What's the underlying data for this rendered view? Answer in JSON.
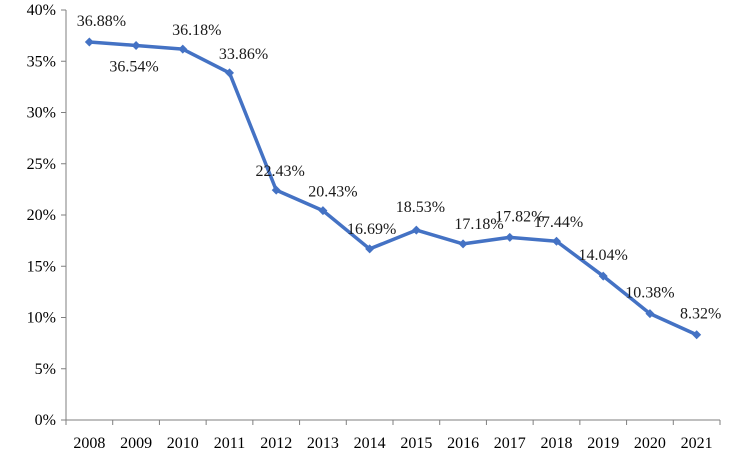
{
  "chart_data": {
    "type": "line",
    "title": "",
    "xlabel": "",
    "ylabel": "",
    "categories": [
      "2008",
      "2009",
      "2010",
      "2011",
      "2012",
      "2013",
      "2014",
      "2015",
      "2016",
      "2017",
      "2018",
      "2019",
      "2020",
      "2021"
    ],
    "series": [
      {
        "name": "",
        "values": [
          36.88,
          36.54,
          36.18,
          33.86,
          22.43,
          20.43,
          16.69,
          18.53,
          17.18,
          17.82,
          17.44,
          14.04,
          10.38,
          8.32
        ],
        "labels": [
          "36.88%",
          "36.54%",
          "36.18%",
          "33.86%",
          "22.43%",
          "20.43%",
          "16.69%",
          "18.53%",
          "17.18%",
          "17.82%",
          "17.44%",
          "14.04%",
          "10.38%",
          "8.32%"
        ],
        "color": "#4472C4"
      }
    ],
    "ylim": [
      0,
      40
    ],
    "yticks": [
      0,
      5,
      10,
      15,
      20,
      25,
      30,
      35,
      40
    ],
    "ytick_labels": [
      "0%",
      "5%",
      "10%",
      "15%",
      "20%",
      "25%",
      "30%",
      "35%",
      "40%"
    ],
    "grid": false,
    "legend": "none"
  }
}
